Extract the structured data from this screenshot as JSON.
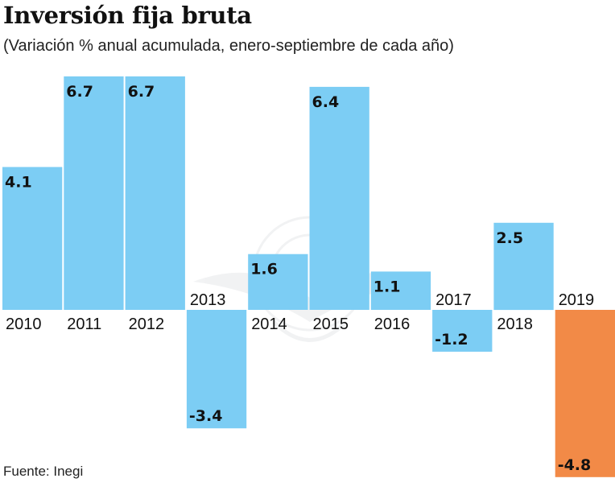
{
  "chart_data": {
    "type": "bar",
    "title": "Inversión fija bruta",
    "subtitle": "(Variación % anual acumulada, enero-septiembre de cada año)",
    "source": "Fuente: Inegi",
    "categories": [
      "2010",
      "2011",
      "2012",
      "2013",
      "2014",
      "2015",
      "2016",
      "2017",
      "2018",
      "2019"
    ],
    "values": [
      4.1,
      6.7,
      6.7,
      -3.4,
      1.6,
      6.4,
      1.1,
      -1.2,
      2.5,
      -4.8
    ],
    "value_labels": [
      "4.1",
      "6.7",
      "6.7",
      "-3.4",
      "1.6",
      "6.4",
      "1.1",
      "-1.2",
      "2.5",
      "-4.8"
    ],
    "xlabel": "",
    "ylabel": "",
    "ylim": [
      -4.8,
      6.7
    ],
    "grid": false,
    "colors": {
      "default": "#7ccdf4",
      "highlight": "#f28a47"
    },
    "highlight_index": 9
  }
}
